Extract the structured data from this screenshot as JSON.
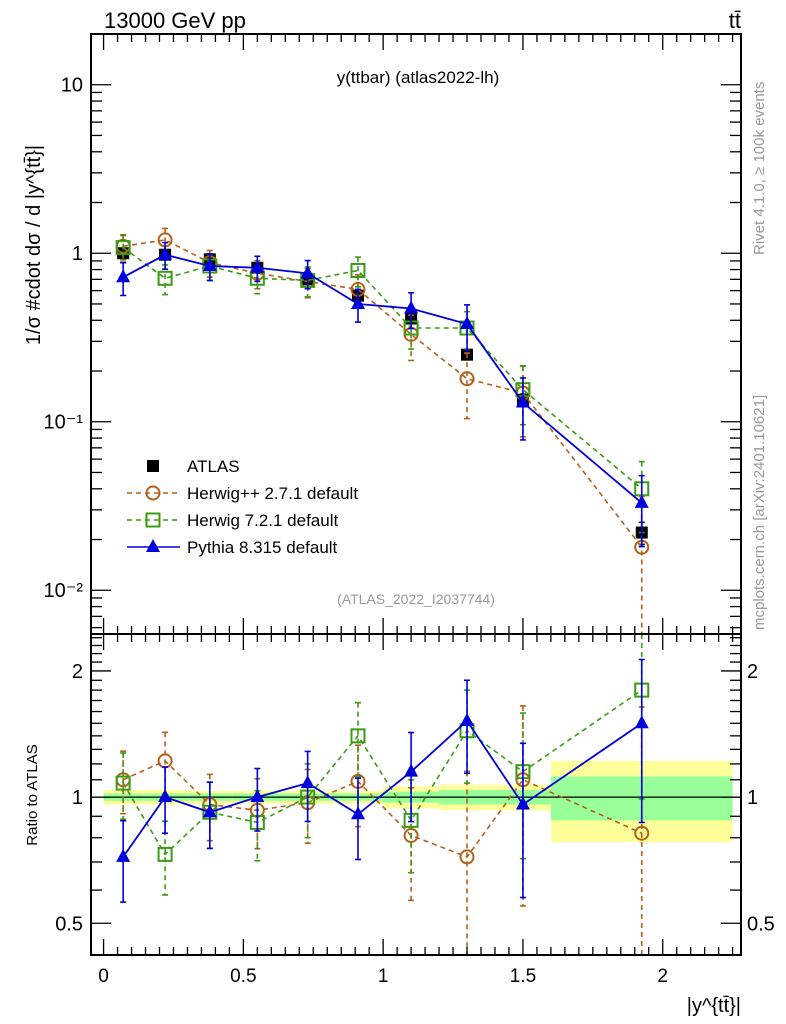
{
  "header": {
    "left_title": "13000 GeV pp",
    "right_title": "tt̄"
  },
  "side_labels": {
    "rivet": "Rivet 4.1.0, ≥ 100k events",
    "mcplots": "mcplots.cern.ch [arXiv:2401.10621]"
  },
  "colors": {
    "atlas": "#000000",
    "herwigpp": "#b3611a",
    "herwig7": "#3a9b14",
    "pythia": "#0000dd",
    "band_inner": "#99ff99",
    "band_outer": "#ffff99",
    "watermark": "#999999"
  },
  "chart_data": [
    {
      "type": "scatter",
      "panel": "main",
      "title": "y(ttbar) (atlas2022-lh)",
      "watermark": "(ATLAS_2022_I2037744)",
      "xlabel": "",
      "ylabel": "1/σ #cdot dσ / d |y^{tt̄}|",
      "yscale": "log",
      "xlim": [
        -0.045,
        2.28
      ],
      "ylim": [
        0.0055,
        20
      ],
      "ytick_labels": [
        "10",
        "1",
        "10⁻¹",
        "10⁻²"
      ],
      "ytick_values": [
        10,
        1,
        0.1,
        0.01
      ],
      "legend_position": "lower-left",
      "x": [
        0.07,
        0.22,
        0.38,
        0.55,
        0.73,
        0.91,
        1.1,
        1.3,
        1.5,
        1.925
      ],
      "bin_edges": [
        0,
        0.14,
        0.3,
        0.46,
        0.64,
        0.82,
        1.0,
        1.2,
        1.4,
        1.6,
        2.25
      ],
      "series": [
        {
          "name": "ATLAS",
          "style": "data",
          "values": [
            1.0,
            0.98,
            0.92,
            0.82,
            0.7,
            0.56,
            0.41,
            0.25,
            0.135,
            0.022
          ],
          "err_frac": [
            0.03,
            0.03,
            0.03,
            0.03,
            0.03,
            0.03,
            0.04,
            0.05,
            0.08,
            0.15
          ]
        },
        {
          "name": "Herwig++ 2.7.1 default",
          "style": "herwigpp",
          "values": [
            1.1,
            1.2,
            0.88,
            0.76,
            0.68,
            0.61,
            0.33,
            0.18,
            0.148,
            0.018
          ],
          "err_frac": [
            0.17,
            0.17,
            0.18,
            0.19,
            0.2,
            0.22,
            0.3,
            0.42,
            0.45,
            1.0
          ]
        },
        {
          "name": "Herwig 7.2.1 default",
          "style": "herwig7",
          "values": [
            1.08,
            0.71,
            0.84,
            0.71,
            0.69,
            0.79,
            0.36,
            0.36,
            0.155,
            0.04
          ],
          "err_frac": [
            0.18,
            0.2,
            0.18,
            0.19,
            0.2,
            0.2,
            0.25,
            0.25,
            0.38,
            0.45
          ]
        },
        {
          "name": "Pythia 8.315 default",
          "style": "pythia",
          "values": [
            0.72,
            0.98,
            0.84,
            0.82,
            0.76,
            0.5,
            0.47,
            0.38,
            0.13,
            0.033
          ],
          "err_frac": [
            0.22,
            0.18,
            0.18,
            0.17,
            0.19,
            0.22,
            0.24,
            0.3,
            0.4,
            0.45
          ]
        }
      ]
    },
    {
      "type": "scatter",
      "panel": "ratio",
      "xlabel": "|y^{tt̄}|",
      "ylabel": "Ratio to ATLAS",
      "yscale": "log",
      "xlim": [
        -0.045,
        2.28
      ],
      "ylim": [
        0.42,
        2.45
      ],
      "xtick_labels": [
        "0",
        "0.5",
        "1",
        "1.5",
        "2"
      ],
      "xtick_values": [
        0,
        0.5,
        1,
        1.5,
        2
      ],
      "ytick_labels": [
        "2",
        "1",
        "0.5"
      ],
      "ytick_values": [
        2,
        1,
        0.5
      ],
      "x": [
        0.07,
        0.22,
        0.38,
        0.55,
        0.73,
        0.91,
        1.1,
        1.3,
        1.5,
        1.925
      ],
      "band_inner_frac": [
        0.02,
        0.02,
        0.02,
        0.02,
        0.02,
        0.02,
        0.03,
        0.04,
        0.04,
        0.12
      ],
      "band_outer_frac": [
        0.04,
        0.04,
        0.035,
        0.035,
        0.035,
        0.035,
        0.06,
        0.07,
        0.07,
        0.22
      ],
      "series": [
        {
          "name": "Herwig++ 2.7.1 default",
          "style": "herwigpp",
          "values": [
            1.1,
            1.22,
            0.96,
            0.93,
            0.97,
            1.09,
            0.81,
            0.72,
            1.1,
            0.82
          ],
          "err_frac": [
            0.17,
            0.17,
            0.18,
            0.19,
            0.2,
            0.22,
            0.3,
            0.6,
            0.5,
            1.0
          ]
        },
        {
          "name": "Herwig 7.2.1 default",
          "style": "herwig7",
          "values": [
            1.08,
            0.73,
            0.92,
            0.87,
            1.0,
            1.4,
            0.88,
            1.44,
            1.15,
            1.8
          ],
          "err_frac": [
            0.18,
            0.2,
            0.18,
            0.19,
            0.2,
            0.2,
            0.25,
            0.25,
            0.38,
            0.45
          ]
        },
        {
          "name": "Pythia 8.315 default",
          "style": "pythia",
          "values": [
            0.72,
            1.0,
            0.92,
            1.0,
            1.08,
            0.91,
            1.15,
            1.52,
            0.96,
            1.5
          ],
          "err_frac": [
            0.22,
            0.18,
            0.18,
            0.17,
            0.19,
            0.22,
            0.24,
            0.25,
            0.4,
            0.42
          ]
        }
      ]
    }
  ]
}
